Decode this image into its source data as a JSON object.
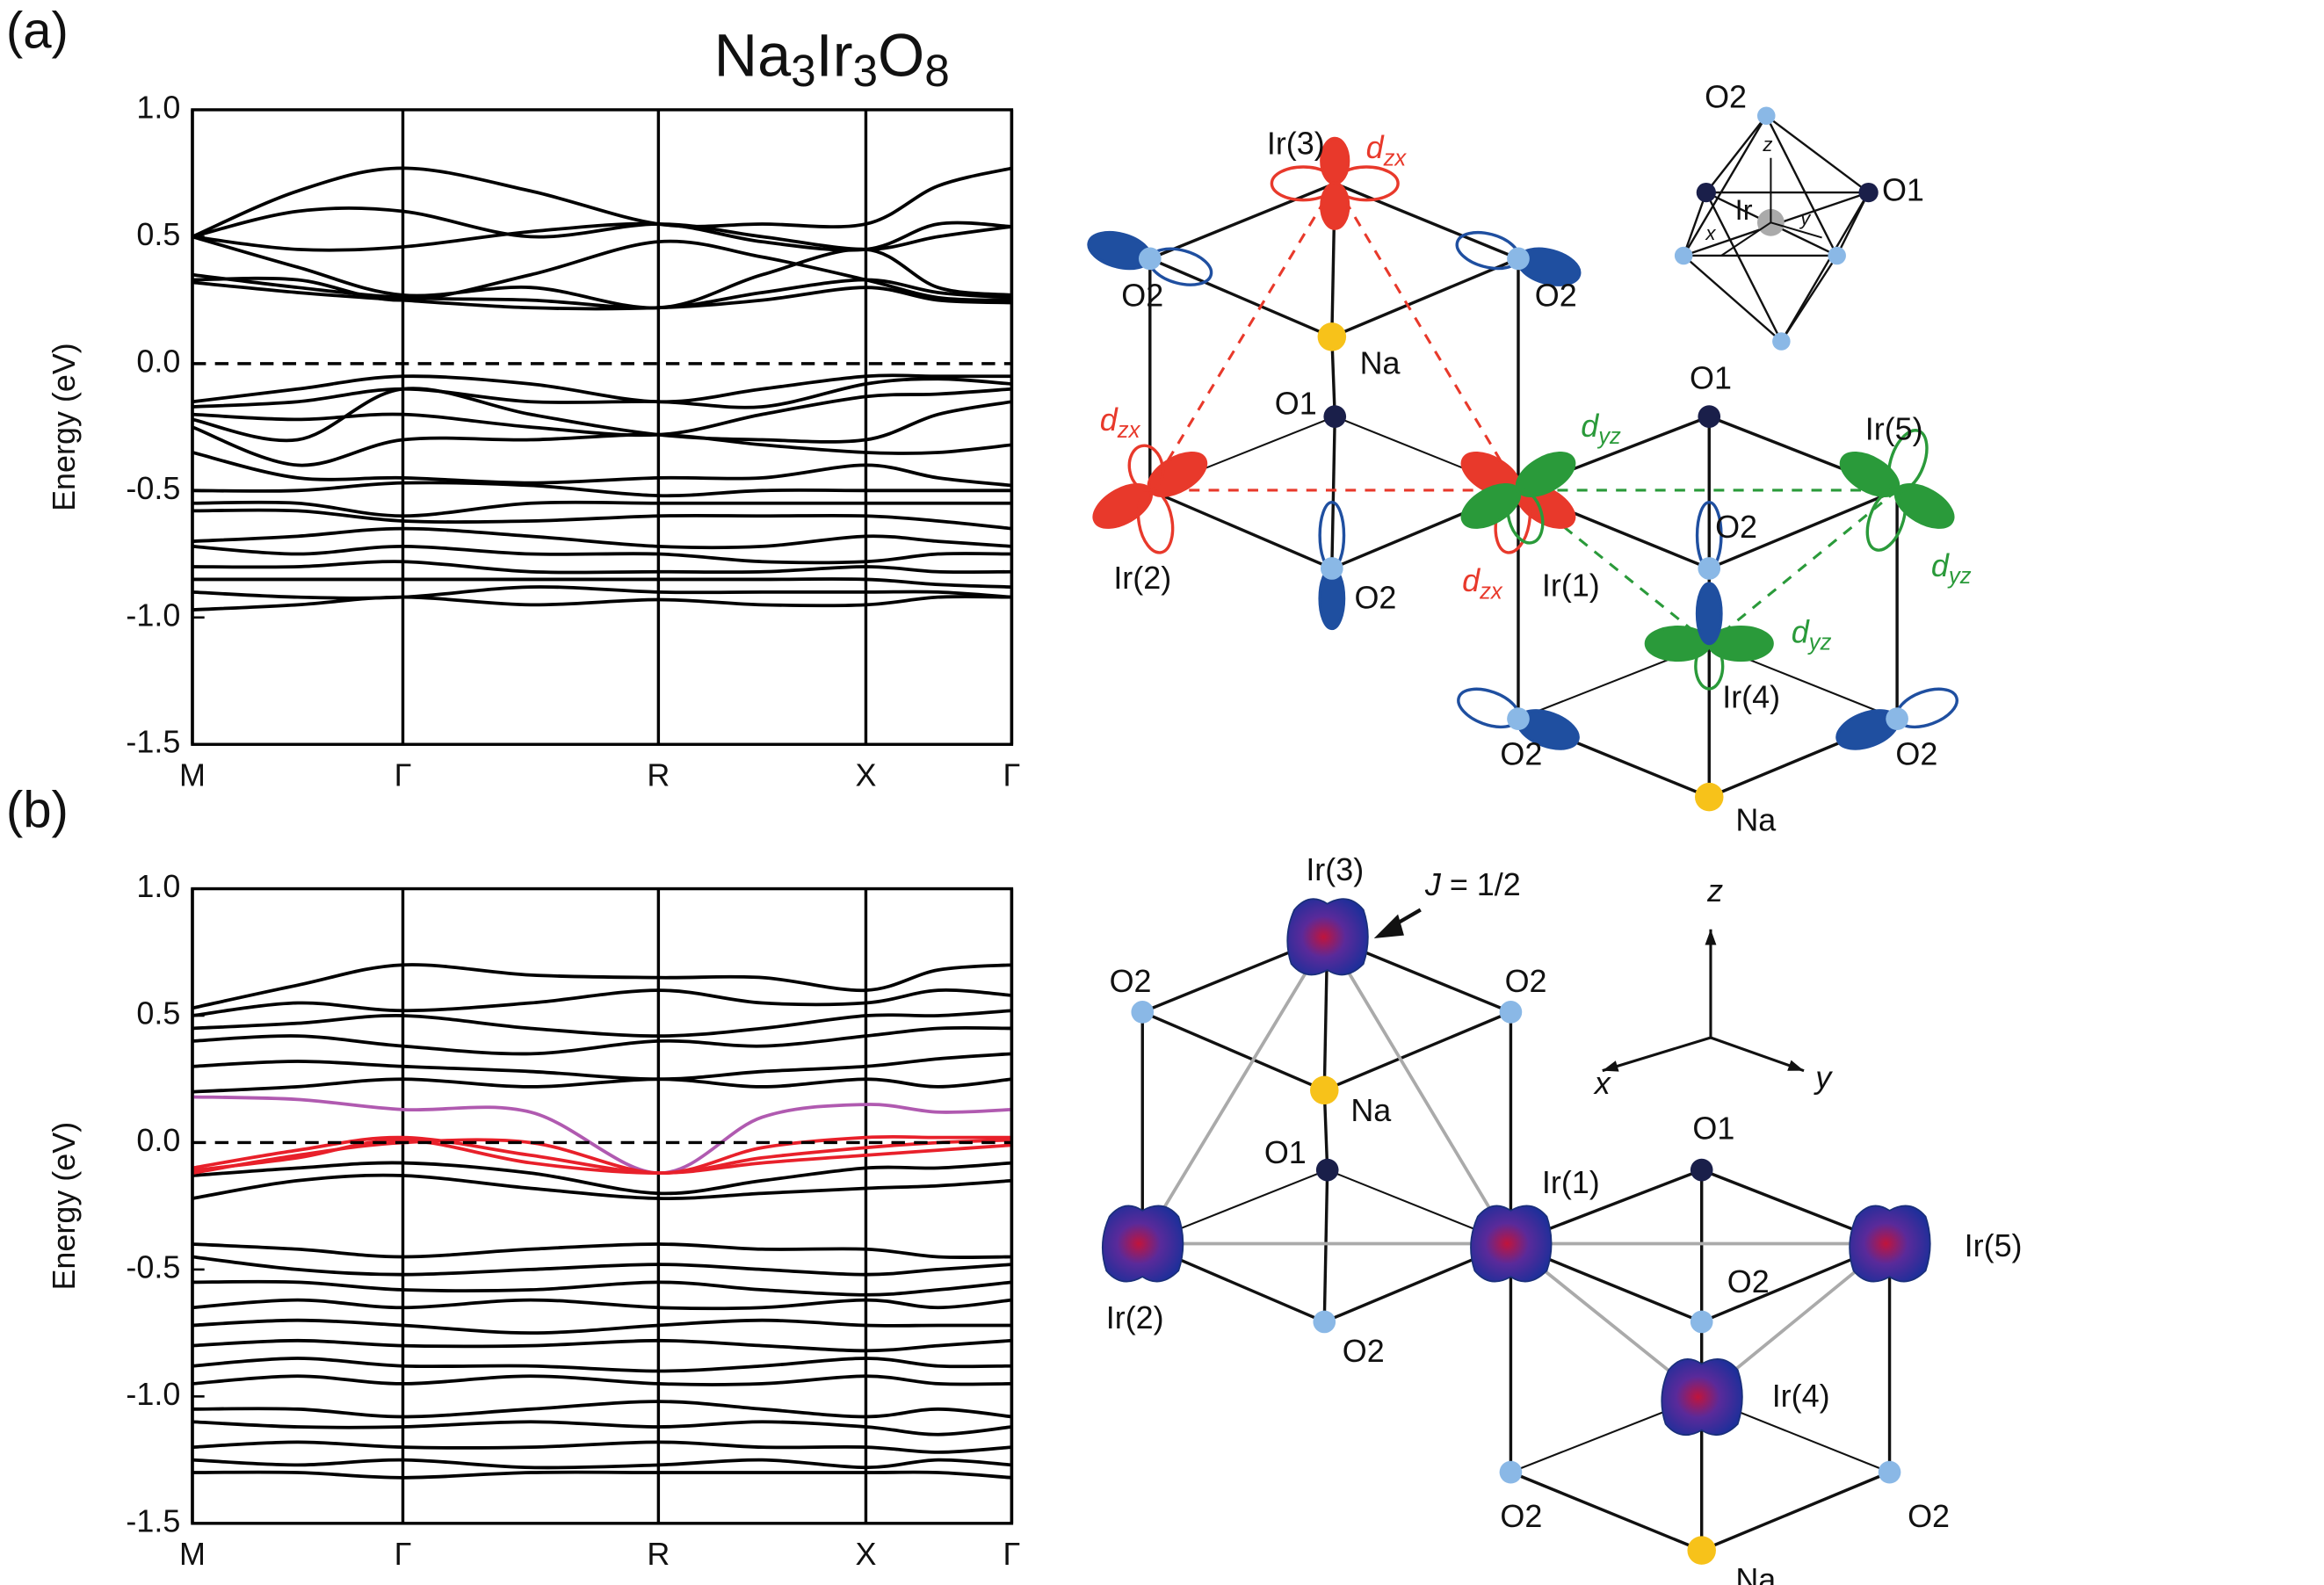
{
  "formula": [
    "Na",
    "3",
    "Ir",
    "3",
    "O",
    "8"
  ],
  "chart_data": [
    {
      "type": "line",
      "panel": "(a)",
      "y_label": "Energy (eV)",
      "x": [
        0,
        0.7,
        1.4,
        2.25,
        3.1,
        3.79,
        4.48,
        4.96,
        5.45
      ],
      "xlim": [
        0,
        5.45
      ],
      "xticks": [
        {
          "value": 0,
          "label": "M"
        },
        {
          "value": 1.4,
          "label": "Γ"
        },
        {
          "value": 3.1,
          "label": "R"
        },
        {
          "value": 4.48,
          "label": "X"
        },
        {
          "value": 5.45,
          "label": "Γ"
        }
      ],
      "ylim": [
        -1.5,
        1.0
      ],
      "yticks": [
        {
          "value": 1.0,
          "label": "1.0"
        },
        0.5,
        {
          "value": 0,
          "label": "0.0"
        },
        -0.5,
        {
          "value": -1.0,
          "label": "-1.0"
        },
        -1.5
      ],
      "hline": 0,
      "series": [
        {
          "color": "#000000",
          "values": [
            0.5,
            0.68,
            0.77,
            0.68,
            0.55,
            0.55,
            0.55,
            0.7,
            0.77
          ]
        },
        {
          "color": "#000000",
          "values": [
            0.5,
            0.6,
            0.6,
            0.5,
            0.55,
            0.5,
            0.45,
            0.5,
            0.54
          ]
        },
        {
          "color": "#000000",
          "values": [
            0.5,
            0.45,
            0.46,
            0.52,
            0.55,
            0.48,
            0.45,
            0.55,
            0.54
          ]
        },
        {
          "color": "#000000",
          "values": [
            0.5,
            0.38,
            0.27,
            0.3,
            0.22,
            0.35,
            0.45,
            0.3,
            0.27
          ]
        },
        {
          "color": "#000000",
          "values": [
            0.35,
            0.3,
            0.26,
            0.25,
            0.22,
            0.28,
            0.33,
            0.28,
            0.26
          ]
        },
        {
          "color": "#000000",
          "values": [
            0.33,
            0.33,
            0.25,
            0.35,
            0.48,
            0.42,
            0.33,
            0.26,
            0.25
          ]
        },
        {
          "color": "#000000",
          "values": [
            0.32,
            0.28,
            0.25,
            0.22,
            0.22,
            0.25,
            0.3,
            0.25,
            0.24
          ]
        },
        {
          "color": "#000000",
          "values": [
            -0.15,
            -0.1,
            -0.05,
            -0.08,
            -0.15,
            -0.1,
            -0.05,
            -0.05,
            -0.05
          ]
        },
        {
          "color": "#000000",
          "values": [
            -0.17,
            -0.15,
            -0.1,
            -0.15,
            -0.15,
            -0.17,
            -0.08,
            -0.06,
            -0.08
          ]
        },
        {
          "color": "#000000",
          "values": [
            -0.2,
            -0.22,
            -0.2,
            -0.25,
            -0.28,
            -0.2,
            -0.13,
            -0.12,
            -0.1
          ]
        },
        {
          "color": "#000000",
          "values": [
            -0.22,
            -0.3,
            -0.1,
            -0.2,
            -0.28,
            -0.3,
            -0.3,
            -0.2,
            -0.15
          ]
        },
        {
          "color": "#000000",
          "values": [
            -0.25,
            -0.4,
            -0.3,
            -0.3,
            -0.28,
            -0.32,
            -0.35,
            -0.35,
            -0.32
          ]
        },
        {
          "color": "#000000",
          "values": [
            -0.35,
            -0.45,
            -0.45,
            -0.47,
            -0.45,
            -0.45,
            -0.4,
            -0.45,
            -0.48
          ]
        },
        {
          "color": "#000000",
          "values": [
            -0.5,
            -0.5,
            -0.47,
            -0.48,
            -0.52,
            -0.5,
            -0.5,
            -0.5,
            -0.5
          ]
        },
        {
          "color": "#000000",
          "values": [
            -0.55,
            -0.55,
            -0.6,
            -0.55,
            -0.55,
            -0.55,
            -0.55,
            -0.55,
            -0.55
          ]
        },
        {
          "color": "#000000",
          "values": [
            -0.58,
            -0.58,
            -0.62,
            -0.62,
            -0.6,
            -0.6,
            -0.6,
            -0.62,
            -0.65
          ]
        },
        {
          "color": "#000000",
          "values": [
            -0.7,
            -0.68,
            -0.65,
            -0.68,
            -0.72,
            -0.72,
            -0.68,
            -0.7,
            -0.72
          ]
        },
        {
          "color": "#000000",
          "values": [
            -0.72,
            -0.75,
            -0.72,
            -0.75,
            -0.75,
            -0.78,
            -0.78,
            -0.75,
            -0.75
          ]
        },
        {
          "color": "#000000",
          "values": [
            -0.8,
            -0.8,
            -0.78,
            -0.82,
            -0.82,
            -0.82,
            -0.8,
            -0.82,
            -0.82
          ]
        },
        {
          "color": "#000000",
          "values": [
            -0.85,
            -0.85,
            -0.85,
            -0.85,
            -0.85,
            -0.85,
            -0.85,
            -0.87,
            -0.88
          ]
        },
        {
          "color": "#000000",
          "values": [
            -0.9,
            -0.92,
            -0.92,
            -0.88,
            -0.9,
            -0.9,
            -0.9,
            -0.9,
            -0.92
          ]
        },
        {
          "color": "#000000",
          "values": [
            -0.97,
            -0.95,
            -0.92,
            -0.95,
            -0.93,
            -0.95,
            -0.95,
            -0.92,
            -0.92
          ]
        }
      ]
    },
    {
      "type": "line",
      "panel": "(b)",
      "y_label": "Energy (eV)",
      "x": [
        0,
        0.7,
        1.4,
        2.25,
        3.1,
        3.79,
        4.48,
        4.96,
        5.45
      ],
      "xlim": [
        0,
        5.45
      ],
      "xticks": [
        {
          "value": 0,
          "label": "M"
        },
        {
          "value": 1.4,
          "label": "Γ"
        },
        {
          "value": 3.1,
          "label": "R"
        },
        {
          "value": 4.48,
          "label": "X"
        },
        {
          "value": 5.45,
          "label": "Γ"
        }
      ],
      "ylim": [
        -1.5,
        1.0
      ],
      "yticks": [
        {
          "value": 1.0,
          "label": "1.0"
        },
        0.5,
        {
          "value": 0,
          "label": "0.0"
        },
        -0.5,
        {
          "value": -1.0,
          "label": "-1.0"
        },
        -1.5
      ],
      "hline": 0,
      "series": [
        {
          "color": "#000000",
          "values": [
            0.53,
            0.62,
            0.7,
            0.66,
            0.65,
            0.65,
            0.6,
            0.68,
            0.7
          ]
        },
        {
          "color": "#000000",
          "values": [
            0.5,
            0.55,
            0.52,
            0.55,
            0.6,
            0.55,
            0.55,
            0.6,
            0.58
          ]
        },
        {
          "color": "#000000",
          "values": [
            0.45,
            0.47,
            0.5,
            0.45,
            0.42,
            0.45,
            0.5,
            0.5,
            0.52
          ]
        },
        {
          "color": "#000000",
          "values": [
            0.4,
            0.42,
            0.38,
            0.35,
            0.4,
            0.38,
            0.42,
            0.45,
            0.45
          ]
        },
        {
          "color": "#000000",
          "values": [
            0.3,
            0.32,
            0.3,
            0.28,
            0.25,
            0.28,
            0.3,
            0.33,
            0.35
          ]
        },
        {
          "color": "#000000",
          "values": [
            0.2,
            0.22,
            0.25,
            0.22,
            0.25,
            0.22,
            0.25,
            0.22,
            0.25
          ]
        },
        {
          "color": "#000000",
          "values": [
            -0.13,
            -0.1,
            -0.08,
            -0.12,
            -0.2,
            -0.15,
            -0.1,
            -0.1,
            -0.08
          ]
        },
        {
          "color": "#000000",
          "values": [
            -0.22,
            -0.15,
            -0.13,
            -0.18,
            -0.22,
            -0.2,
            -0.18,
            -0.17,
            -0.15
          ]
        },
        {
          "color": "#000000",
          "values": [
            -0.4,
            -0.42,
            -0.45,
            -0.42,
            -0.4,
            -0.42,
            -0.42,
            -0.45,
            -0.45
          ]
        },
        {
          "color": "#000000",
          "values": [
            -0.45,
            -0.5,
            -0.52,
            -0.5,
            -0.48,
            -0.5,
            -0.52,
            -0.5,
            -0.48
          ]
        },
        {
          "color": "#000000",
          "values": [
            -0.55,
            -0.55,
            -0.58,
            -0.58,
            -0.55,
            -0.58,
            -0.6,
            -0.58,
            -0.55
          ]
        },
        {
          "color": "#000000",
          "values": [
            -0.65,
            -0.62,
            -0.65,
            -0.62,
            -0.65,
            -0.65,
            -0.62,
            -0.65,
            -0.62
          ]
        },
        {
          "color": "#000000",
          "values": [
            -0.72,
            -0.7,
            -0.72,
            -0.75,
            -0.72,
            -0.7,
            -0.72,
            -0.72,
            -0.72
          ]
        },
        {
          "color": "#000000",
          "values": [
            -0.8,
            -0.78,
            -0.8,
            -0.8,
            -0.78,
            -0.8,
            -0.82,
            -0.8,
            -0.78
          ]
        },
        {
          "color": "#000000",
          "values": [
            -0.88,
            -0.85,
            -0.88,
            -0.88,
            -0.9,
            -0.88,
            -0.85,
            -0.88,
            -0.88
          ]
        },
        {
          "color": "#000000",
          "values": [
            -0.95,
            -0.92,
            -0.95,
            -0.92,
            -0.95,
            -0.95,
            -0.92,
            -0.95,
            -0.95
          ]
        },
        {
          "color": "#000000",
          "values": [
            -1.05,
            -1.05,
            -1.08,
            -1.05,
            -1.02,
            -1.05,
            -1.08,
            -1.05,
            -1.08
          ]
        },
        {
          "color": "#000000",
          "values": [
            -1.1,
            -1.12,
            -1.12,
            -1.1,
            -1.12,
            -1.1,
            -1.12,
            -1.15,
            -1.12
          ]
        },
        {
          "color": "#000000",
          "values": [
            -1.2,
            -1.18,
            -1.2,
            -1.2,
            -1.18,
            -1.2,
            -1.2,
            -1.22,
            -1.2
          ]
        },
        {
          "color": "#000000",
          "values": [
            -1.25,
            -1.27,
            -1.25,
            -1.28,
            -1.27,
            -1.25,
            -1.28,
            -1.25,
            -1.27
          ]
        },
        {
          "color": "#000000",
          "values": [
            -1.3,
            -1.3,
            -1.32,
            -1.3,
            -1.3,
            -1.3,
            -1.3,
            -1.3,
            -1.32
          ]
        },
        {
          "color": "#b05ab0",
          "values": [
            0.18,
            0.17,
            0.13,
            0.12,
            -0.12,
            0.1,
            0.15,
            0.12,
            0.13
          ]
        },
        {
          "color": "#e8202a",
          "values": [
            -0.12,
            -0.05,
            0.0,
            0.0,
            -0.12,
            -0.02,
            0.02,
            0.02,
            0.02
          ]
        },
        {
          "color": "#e8202a",
          "values": [
            -0.1,
            -0.03,
            0.02,
            -0.05,
            -0.12,
            -0.06,
            -0.02,
            0.0,
            0.01
          ]
        },
        {
          "color": "#e8202a",
          "values": [
            -0.11,
            -0.06,
            0.01,
            -0.08,
            -0.12,
            -0.08,
            -0.05,
            -0.03,
            -0.01
          ]
        }
      ]
    }
  ],
  "diagram_a": {
    "labels": [
      "Ir(3)",
      "O2",
      "O2",
      "Na",
      "O1",
      "O1",
      "Ir(5)",
      "O2",
      "Ir(2)",
      "O2",
      "Ir(1)",
      "Ir(4)",
      "O2",
      "O2",
      "Na"
    ],
    "orbitals": [
      {
        "main": "d",
        "sub": "zx"
      },
      {
        "main": "d",
        "sub": "zx"
      },
      {
        "main": "d",
        "sub": "yz"
      },
      {
        "main": "d",
        "sub": "zx"
      },
      {
        "main": "d",
        "sub": "yz"
      },
      {
        "main": "d",
        "sub": "yz"
      }
    ],
    "inset_labels": [
      "O2",
      "O1",
      "Ir",
      "z",
      "x",
      "y"
    ]
  },
  "diagram_b": {
    "labels": [
      "Ir(3)",
      "O2",
      "O2",
      "Na",
      "O1",
      "Ir(1)",
      "O1",
      "Ir(2)",
      "O2",
      "O2",
      "Ir(5)",
      "Ir(4)",
      "O2",
      "O2",
      "Na"
    ],
    "j_label": {
      "var": "J",
      "rest": " = 1/2"
    },
    "axis_labels": [
      "z",
      "x",
      "y"
    ]
  }
}
